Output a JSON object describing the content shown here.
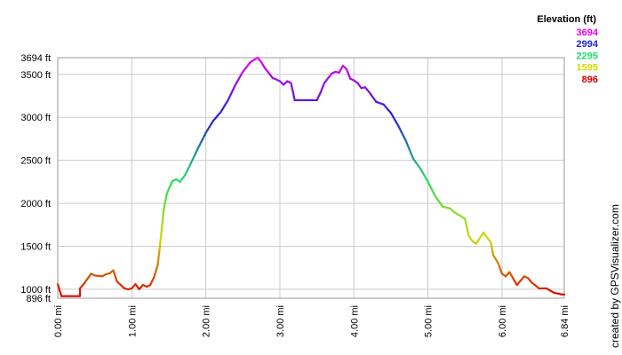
{
  "chart_data": {
    "type": "line",
    "title": "",
    "xlabel": "",
    "ylabel": "",
    "x_unit": "mi",
    "y_unit": "ft",
    "xlim": [
      0,
      6.84
    ],
    "ylim": [
      896,
      3694
    ],
    "grid": true,
    "x_ticks": [
      {
        "value": 0,
        "label": "0.00 mi"
      },
      {
        "value": 1,
        "label": "1.00 mi"
      },
      {
        "value": 2,
        "label": "2.00 mi"
      },
      {
        "value": 3,
        "label": "3.00 mi"
      },
      {
        "value": 4,
        "label": "4.00 mi"
      },
      {
        "value": 5,
        "label": "5.00 mi"
      },
      {
        "value": 6,
        "label": "6.00 mi"
      },
      {
        "value": 6.84,
        "label": "6.84 mi"
      }
    ],
    "y_ticks": [
      {
        "value": 896,
        "label": "896 ft"
      },
      {
        "value": 1000,
        "label": "1000 ft"
      },
      {
        "value": 1500,
        "label": "1500 ft"
      },
      {
        "value": 2000,
        "label": "2000 ft"
      },
      {
        "value": 2500,
        "label": "2500 ft"
      },
      {
        "value": 3000,
        "label": "3000 ft"
      },
      {
        "value": 3500,
        "label": "3500 ft"
      },
      {
        "value": 3694,
        "label": "3694 ft"
      }
    ],
    "legend": {
      "title": "Elevation (ft)",
      "placement": "top-right",
      "entries": [
        {
          "label": "3694",
          "value": 3694,
          "color": "#ee00ee"
        },
        {
          "label": "2994",
          "value": 2994,
          "color": "#2222dd"
        },
        {
          "label": "2295",
          "value": 2295,
          "color": "#22dd66"
        },
        {
          "label": "1595",
          "value": 1595,
          "color": "#ccdd00"
        },
        {
          "label": "896",
          "value": 896,
          "color": "#dd0000"
        }
      ]
    },
    "credit": "created by GPSVisualizer.com",
    "series": [
      {
        "x": [
          0,
          0.05,
          0.3,
          0.3,
          0.35,
          0.45,
          0.5,
          0.6,
          0.65,
          0.7,
          0.75,
          0.8,
          0.9,
          0.95,
          1.0,
          1.05,
          1.1,
          1.15,
          1.2,
          1.25,
          1.3,
          1.35,
          1.4,
          1.43,
          1.47,
          1.5,
          1.55,
          1.6,
          1.65,
          1.72,
          1.8,
          1.9,
          2.0,
          2.1,
          2.2,
          2.3,
          2.4,
          2.5,
          2.6,
          2.7,
          2.75,
          2.8,
          2.9,
          3.0,
          3.05,
          3.1,
          3.15,
          3.2,
          3.5,
          3.55,
          3.6,
          3.7,
          3.75,
          3.8,
          3.85,
          3.9,
          3.95,
          4.0,
          4.05,
          4.1,
          4.15,
          4.2,
          4.3,
          4.4,
          4.5,
          4.6,
          4.7,
          4.8,
          4.9,
          5.0,
          5.1,
          5.2,
          5.3,
          5.35,
          5.5,
          5.55,
          5.6,
          5.65,
          5.75,
          5.85,
          5.88,
          5.95,
          6.0,
          6.05,
          6.1,
          6.2,
          6.3,
          6.35,
          6.4,
          6.5,
          6.6,
          6.7,
          6.8,
          6.84
        ],
        "y": [
          1060,
          920,
          920,
          1010,
          1060,
          1180,
          1160,
          1150,
          1175,
          1185,
          1220,
          1090,
          1010,
          1000,
          1010,
          1060,
          1000,
          1050,
          1030,
          1050,
          1140,
          1280,
          1660,
          1920,
          2100,
          2170,
          2260,
          2280,
          2250,
          2330,
          2470,
          2650,
          2820,
          2960,
          3060,
          3200,
          3380,
          3530,
          3640,
          3694,
          3640,
          3570,
          3460,
          3420,
          3380,
          3420,
          3400,
          3200,
          3200,
          3290,
          3400,
          3510,
          3530,
          3520,
          3600,
          3560,
          3450,
          3430,
          3400,
          3340,
          3350,
          3300,
          3180,
          3150,
          3050,
          2900,
          2730,
          2520,
          2400,
          2250,
          2080,
          1960,
          1940,
          1900,
          1820,
          1620,
          1560,
          1530,
          1660,
          1540,
          1400,
          1300,
          1180,
          1150,
          1200,
          1050,
          1150,
          1130,
          1080,
          1010,
          1010,
          960,
          940,
          940
        ]
      }
    ]
  }
}
